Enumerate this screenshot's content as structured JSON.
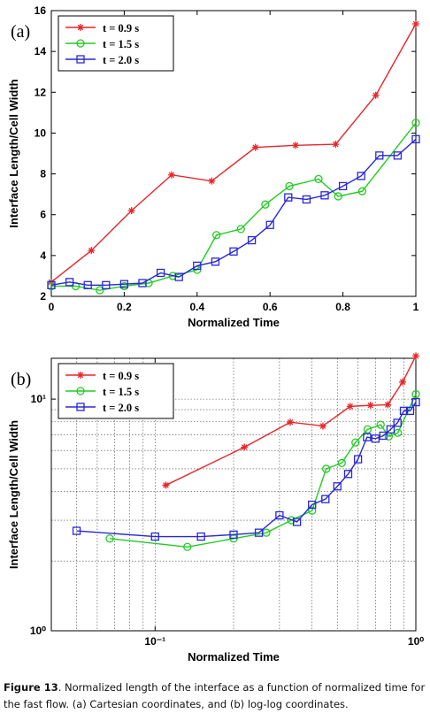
{
  "chart_data": [
    {
      "panel_label": "(a)",
      "type": "line",
      "xscale": "linear",
      "yscale": "linear",
      "xlabel": "Normalized Time",
      "ylabel": "Interface Length/Cell Width",
      "xlim": [
        0,
        1
      ],
      "ylim": [
        2,
        16
      ],
      "xticks": [
        0,
        0.2,
        0.4,
        0.6,
        0.8,
        1
      ],
      "xtick_labels": [
        "0",
        "0.2",
        "0.4",
        "0.6",
        "0.8",
        "1"
      ],
      "yticks": [
        2,
        4,
        6,
        8,
        10,
        12,
        14,
        16
      ],
      "ytick_labels": [
        "2",
        "4",
        "6",
        "8",
        "10",
        "12",
        "14",
        "16"
      ],
      "grid": false,
      "legend_position": "top-left",
      "series": [
        {
          "name": "t = 0.9 s",
          "color": "#e8262a",
          "marker": "star",
          "x": [
            0.0,
            0.11,
            0.22,
            0.33,
            0.44,
            0.56,
            0.67,
            0.78,
            0.89,
            1.0
          ],
          "y": [
            2.7,
            4.25,
            6.2,
            7.95,
            7.65,
            9.3,
            9.4,
            9.45,
            11.85,
            15.35
          ]
        },
        {
          "name": "t = 1.5 s",
          "color": "#22cc22",
          "marker": "circle",
          "x": [
            0.0,
            0.067,
            0.133,
            0.2,
            0.267,
            0.333,
            0.4,
            0.453,
            0.52,
            0.587,
            0.653,
            0.733,
            0.787,
            0.853,
            1.0
          ],
          "y": [
            2.5,
            2.5,
            2.3,
            2.5,
            2.65,
            3.0,
            3.3,
            5.0,
            5.3,
            6.5,
            7.4,
            7.75,
            6.9,
            7.15,
            10.5
          ]
        },
        {
          "name": "t = 2.0 s",
          "color": "#2828d8",
          "marker": "square",
          "x": [
            0.0,
            0.05,
            0.1,
            0.15,
            0.2,
            0.25,
            0.3,
            0.35,
            0.4,
            0.45,
            0.5,
            0.55,
            0.6,
            0.65,
            0.7,
            0.75,
            0.8,
            0.85,
            0.9,
            0.95,
            1.0
          ],
          "y": [
            2.55,
            2.7,
            2.55,
            2.55,
            2.6,
            2.65,
            3.15,
            2.95,
            3.5,
            3.7,
            4.2,
            4.75,
            5.5,
            6.85,
            6.75,
            6.95,
            7.4,
            7.9,
            8.9,
            8.9,
            9.7
          ]
        }
      ]
    },
    {
      "panel_label": "(b)",
      "type": "line",
      "xscale": "log",
      "yscale": "log",
      "xlabel": "Normalized Time",
      "ylabel": "Interface Length/Cell Width",
      "xlim": [
        0.04,
        1
      ],
      "ylim": [
        1,
        15
      ],
      "xticks": [
        0.1,
        1
      ],
      "xtick_labels": [
        "10⁻¹",
        "10⁰"
      ],
      "yticks": [
        1,
        10
      ],
      "ytick_labels": [
        "10⁰",
        "10¹"
      ],
      "grid": true,
      "legend_position": "top-left",
      "series": [
        {
          "name": "t = 0.9 s",
          "color": "#e8262a",
          "marker": "star",
          "x": [
            0.11,
            0.22,
            0.33,
            0.44,
            0.56,
            0.67,
            0.78,
            0.89,
            1.0
          ],
          "y": [
            4.25,
            6.2,
            7.95,
            7.65,
            9.3,
            9.4,
            9.45,
            11.85,
            15.35
          ]
        },
        {
          "name": "t = 1.5 s",
          "color": "#22cc22",
          "marker": "circle",
          "x": [
            0.067,
            0.133,
            0.2,
            0.267,
            0.333,
            0.4,
            0.453,
            0.52,
            0.587,
            0.653,
            0.733,
            0.787,
            0.853,
            1.0
          ],
          "y": [
            2.5,
            2.3,
            2.5,
            2.65,
            3.0,
            3.3,
            5.0,
            5.3,
            6.5,
            7.4,
            7.75,
            6.9,
            7.15,
            10.5
          ]
        },
        {
          "name": "t = 2.0 s",
          "color": "#2828d8",
          "marker": "square",
          "x": [
            0.05,
            0.1,
            0.15,
            0.2,
            0.25,
            0.3,
            0.35,
            0.4,
            0.45,
            0.5,
            0.55,
            0.6,
            0.65,
            0.7,
            0.75,
            0.8,
            0.85,
            0.9,
            0.95,
            1.0
          ],
          "y": [
            2.7,
            2.55,
            2.55,
            2.6,
            2.65,
            3.15,
            2.95,
            3.5,
            3.7,
            4.2,
            4.75,
            5.5,
            6.85,
            6.75,
            6.95,
            7.4,
            7.9,
            8.9,
            8.9,
            9.7
          ]
        }
      ]
    }
  ],
  "caption": {
    "label": "Figure 13",
    "text": ". Normalized length of the interface as a function of normalized time for the fast flow. (a) Cartesian coordinates, and (b) log-log coordinates."
  }
}
